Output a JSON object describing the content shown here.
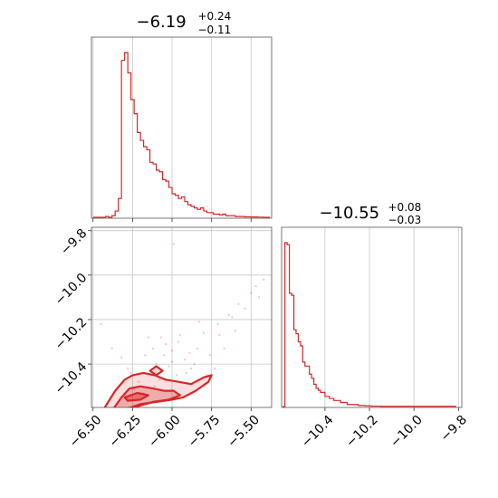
{
  "chart_data": {
    "type": "corner",
    "accent_color": "#d62728",
    "grid": true,
    "parameters": [
      {
        "title_value": "−6.19",
        "title_plus": "+0.24",
        "title_minus": "−0.11",
        "range": [
          -6.51,
          -5.37
        ],
        "ticks": [
          -6.5,
          -6.25,
          -6.0,
          -5.75,
          -5.5
        ],
        "tick_labels": [
          "−6.50",
          "−6.25",
          "−6.00",
          "−5.75",
          "−5.50"
        ]
      },
      {
        "title_value": "−10.55",
        "title_plus": "+0.08",
        "title_minus": "−0.03",
        "range": [
          -10.595,
          -9.785
        ],
        "ticks": [
          -10.4,
          -10.2,
          -10.0,
          -9.8
        ],
        "tick_labels": [
          "−10.4",
          "−10.2",
          "−10.0",
          "−9.8"
        ]
      }
    ],
    "y_axis_2d": {
      "range": [
        -10.595,
        -9.785
      ],
      "ticks": [
        -10.4,
        -10.2,
        -10.0,
        -9.8
      ],
      "tick_labels": [
        "−10.4",
        "−10.2",
        "−10.0",
        "−9.8"
      ]
    },
    "hist_param1": {
      "bin_edges": [
        -6.5,
        -6.48,
        -6.46,
        -6.44,
        -6.42,
        -6.4,
        -6.38,
        -6.36,
        -6.34,
        -6.32,
        -6.3,
        -6.28,
        -6.26,
        -6.24,
        -6.22,
        -6.2,
        -6.18,
        -6.16,
        -6.14,
        -6.12,
        -6.1,
        -6.08,
        -6.06,
        -6.04,
        -6.02,
        -6.0,
        -5.98,
        -5.96,
        -5.94,
        -5.92,
        -5.9,
        -5.88,
        -5.86,
        -5.84,
        -5.82,
        -5.8,
        -5.78,
        -5.76,
        -5.74,
        -5.72,
        -5.7,
        -5.68,
        -5.66,
        -5.64,
        -5.62,
        -5.6,
        -5.58,
        -5.56,
        -5.54,
        -5.52,
        -5.5,
        -5.48,
        -5.46,
        -5.44,
        -5.42,
        -5.4,
        -5.38
      ],
      "counts": [
        0,
        0,
        0,
        0,
        0.5,
        0,
        1,
        4,
        12,
        100,
        105,
        92,
        75,
        66,
        54,
        49,
        45,
        43,
        35,
        34,
        30,
        29,
        24,
        23,
        19,
        15,
        14,
        12,
        13,
        10,
        8,
        7,
        6,
        5,
        6,
        4,
        3,
        3,
        2,
        2,
        1.5,
        2,
        1,
        1,
        1,
        0.5,
        0.5,
        0.5,
        0.3,
        0.3,
        0.2,
        0.2,
        0.1,
        0.1,
        0,
        0
      ]
    },
    "hist_param2": {
      "bin_edges": [
        -10.59,
        -10.58,
        -10.57,
        -10.56,
        -10.55,
        -10.54,
        -10.53,
        -10.52,
        -10.51,
        -10.5,
        -10.49,
        -10.48,
        -10.47,
        -10.46,
        -10.45,
        -10.44,
        -10.43,
        -10.42,
        -10.41,
        -10.4,
        -10.39,
        -10.38,
        -10.37,
        -10.36,
        -10.35,
        -10.34,
        -10.33,
        -10.32,
        -10.31,
        -10.3,
        -10.29,
        -10.28,
        -10.27,
        -10.26,
        -10.25,
        -10.24,
        -10.23,
        -10.22,
        -10.21,
        -10.2,
        -10.19,
        -10.18,
        -10.17,
        -10.16,
        -10.15,
        -10.14,
        -10.13,
        -10.12,
        -10.11,
        -10.1,
        -10.09,
        -10.08,
        -10.07,
        -10.06,
        -10.05,
        -10.04,
        -10.03,
        -10.02,
        -10.01,
        -10.0,
        -9.99,
        -9.98,
        -9.97,
        -9.96,
        -9.95,
        -9.94,
        -9.93,
        -9.92,
        -9.91,
        -9.9,
        -9.89,
        -9.88,
        -9.87,
        -9.86,
        -9.85,
        -9.84,
        -9.83,
        -9.82,
        -9.81
      ],
      "counts": [
        0,
        81,
        80,
        56,
        55,
        38,
        36,
        32,
        30,
        22,
        20,
        20,
        16,
        14,
        11,
        9,
        8,
        7,
        7,
        5,
        5,
        4,
        4,
        3,
        3,
        3,
        2,
        2,
        2,
        1,
        1,
        1,
        1,
        1,
        0.5,
        0.5,
        0.5,
        0.4,
        0.4,
        0.3,
        0.2,
        0.2,
        0.2,
        0.2,
        0.1,
        0.1,
        0.1,
        0.1,
        0.1,
        0.1,
        0.1,
        0.1,
        0.1,
        0.1,
        0.1,
        0.1,
        0.1,
        0.1,
        0.1,
        0.1,
        0.1,
        0.1,
        0.1,
        0.1,
        0.1,
        0.1,
        0.1,
        0.1,
        0.1,
        0.1,
        0.1,
        0.1,
        0.1,
        0.1,
        0.1,
        0.1,
        0.1,
        0.1
      ]
    },
    "scatter_2d": [
      [
        -6.17,
        -10.36
      ],
      [
        -6.1,
        -10.4
      ],
      [
        -6.05,
        -10.36
      ],
      [
        -6.0,
        -10.34
      ],
      [
        -5.96,
        -10.3
      ],
      [
        -5.92,
        -10.38
      ],
      [
        -5.88,
        -10.42
      ],
      [
        -5.84,
        -10.33
      ],
      [
        -5.8,
        -10.26
      ],
      [
        -5.76,
        -10.36
      ],
      [
        -5.7,
        -10.27
      ],
      [
        -5.64,
        -10.18
      ],
      [
        -5.58,
        -10.13
      ],
      [
        -5.54,
        -10.15
      ],
      [
        -5.47,
        -10.05
      ],
      [
        -5.42,
        -10.02
      ],
      [
        -6.21,
        -10.48
      ],
      [
        -6.26,
        -10.44
      ],
      [
        -6.13,
        -10.45
      ],
      [
        -6.08,
        -10.47
      ],
      [
        -6.02,
        -10.41
      ],
      [
        -5.97,
        -10.45
      ],
      [
        -5.91,
        -10.44
      ],
      [
        -5.86,
        -10.4
      ],
      [
        -5.82,
        -10.47
      ],
      [
        -6.0,
        -10.39
      ],
      [
        -6.04,
        -10.31
      ],
      [
        -5.95,
        -10.27
      ],
      [
        -6.38,
        -10.33
      ],
      [
        -6.32,
        -10.37
      ],
      [
        -6.28,
        -10.42
      ],
      [
        -6.45,
        -10.22
      ],
      [
        -5.99,
        -9.86
      ],
      [
        -5.6,
        -10.25
      ],
      [
        -5.67,
        -10.33
      ],
      [
        -5.73,
        -10.42
      ],
      [
        -6.12,
        -10.33
      ],
      [
        -6.07,
        -10.28
      ],
      [
        -5.89,
        -10.35
      ],
      [
        -5.78,
        -10.45
      ],
      [
        -6.24,
        -10.51
      ],
      [
        -6.18,
        -10.53
      ],
      [
        -6.11,
        -10.5
      ],
      [
        -6.06,
        -10.52
      ],
      [
        -5.94,
        -10.48
      ],
      [
        -5.87,
        -10.49
      ],
      [
        -5.5,
        -10.08
      ],
      [
        -5.45,
        -10.1
      ],
      [
        -5.62,
        -10.19
      ],
      [
        -5.71,
        -10.22
      ],
      [
        -5.83,
        -10.21
      ],
      [
        -6.15,
        -10.28
      ]
    ],
    "contours_2d": [
      {
        "level": "outer",
        "points": [
          [
            -6.43,
            -10.6
          ],
          [
            -6.36,
            -10.52
          ],
          [
            -6.3,
            -10.47
          ],
          [
            -6.25,
            -10.45
          ],
          [
            -6.18,
            -10.44
          ],
          [
            -6.11,
            -10.45
          ],
          [
            -6.04,
            -10.47
          ],
          [
            -5.96,
            -10.48
          ],
          [
            -5.88,
            -10.49
          ],
          [
            -5.8,
            -10.46
          ],
          [
            -5.75,
            -10.45
          ],
          [
            -5.77,
            -10.48
          ],
          [
            -5.85,
            -10.52
          ],
          [
            -5.93,
            -10.55
          ],
          [
            -6.0,
            -10.56
          ],
          [
            -6.1,
            -10.57
          ],
          [
            -6.2,
            -10.58
          ],
          [
            -6.28,
            -10.6
          ]
        ]
      },
      {
        "level": "middle",
        "points": [
          [
            -6.37,
            -10.6
          ],
          [
            -6.32,
            -10.55
          ],
          [
            -6.27,
            -10.51
          ],
          [
            -6.2,
            -10.5
          ],
          [
            -6.12,
            -10.51
          ],
          [
            -6.05,
            -10.52
          ],
          [
            -5.99,
            -10.52
          ],
          [
            -5.95,
            -10.54
          ],
          [
            -6.02,
            -10.56
          ],
          [
            -6.12,
            -10.57
          ],
          [
            -6.22,
            -10.59
          ],
          [
            -6.3,
            -10.6
          ]
        ]
      },
      {
        "level": "inner",
        "points": [
          [
            -6.3,
            -10.55
          ],
          [
            -6.22,
            -10.53
          ],
          [
            -6.15,
            -10.54
          ],
          [
            -6.2,
            -10.56
          ],
          [
            -6.28,
            -10.565
          ]
        ]
      },
      {
        "level": "island",
        "points": [
          [
            -6.14,
            -10.43
          ],
          [
            -6.1,
            -10.41
          ],
          [
            -6.06,
            -10.43
          ],
          [
            -6.1,
            -10.45
          ]
        ]
      }
    ]
  }
}
